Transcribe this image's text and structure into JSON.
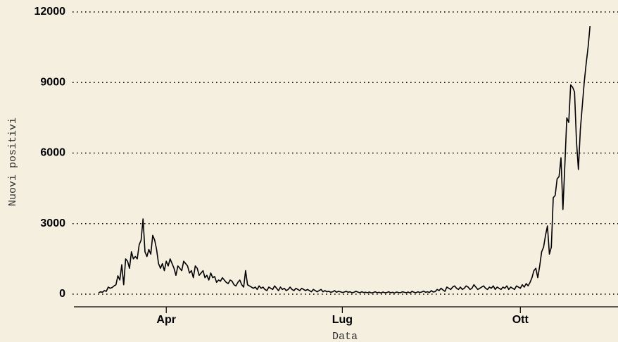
{
  "chart_data": {
    "type": "line",
    "x_label": "Data",
    "y_label": "Nuovi positivi",
    "categories": [
      null,
      null,
      null,
      null,
      null,
      null,
      null,
      null,
      null,
      null,
      null,
      null,
      null,
      null,
      null,
      null,
      null,
      null,
      null,
      null,
      null,
      null,
      null,
      null,
      null,
      null,
      null,
      null,
      null,
      null,
      null,
      null,
      null,
      null,
      null,
      "Apr",
      null,
      null,
      null,
      null,
      null,
      null,
      null,
      null,
      null,
      null,
      null,
      null,
      null,
      null,
      null,
      null,
      null,
      null,
      null,
      null,
      null,
      null,
      null,
      null,
      null,
      null,
      null,
      null,
      null,
      null,
      null,
      null,
      null,
      null,
      null,
      null,
      null,
      null,
      null,
      null,
      null,
      null,
      null,
      null,
      null,
      null,
      null,
      null,
      null,
      null,
      null,
      null,
      null,
      null,
      null,
      null,
      null,
      null,
      null,
      null,
      null,
      null,
      null,
      null,
      null,
      null,
      null,
      null,
      null,
      null,
      null,
      null,
      null,
      null,
      null,
      null,
      null,
      null,
      null,
      null,
      null,
      null,
      null,
      null,
      null,
      null,
      null,
      null,
      null,
      null,
      "Lug",
      null,
      null,
      null,
      null,
      null,
      null,
      null,
      null,
      null,
      null,
      null,
      null,
      null,
      null,
      null,
      null,
      null,
      null,
      null,
      null,
      null,
      null,
      null,
      null,
      null,
      null,
      null,
      null,
      null,
      null,
      null,
      null,
      null,
      null,
      null,
      null,
      null,
      null,
      null,
      null,
      null,
      null,
      null,
      null,
      null,
      null,
      null,
      null,
      null,
      null,
      null,
      null,
      null,
      null,
      null,
      null,
      null,
      null,
      null,
      null,
      null,
      null,
      null,
      null,
      null,
      null,
      null,
      null,
      null,
      null,
      null,
      null,
      null,
      null,
      null,
      null,
      null,
      null,
      null,
      null,
      null,
      null,
      null,
      null,
      null,
      null,
      null,
      null,
      null,
      null,
      null,
      "Ott",
      null,
      null,
      null,
      null,
      null,
      null,
      null,
      null,
      null,
      null,
      null,
      null,
      null,
      null,
      null,
      null,
      null,
      null,
      null,
      null,
      null,
      null,
      null,
      null,
      null,
      null,
      null,
      null,
      null,
      null,
      null,
      null,
      null,
      null,
      null,
      null
    ],
    "series": [
      {
        "name": "Nuovi positivi",
        "color": "#000000",
        "values": [
          50,
          100,
          80,
          150,
          120,
          300,
          250,
          280,
          350,
          400,
          780,
          600,
          1250,
          400,
          1500,
          1400,
          1100,
          1800,
          1500,
          1600,
          1500,
          2100,
          2300,
          3200,
          1800,
          1600,
          1900,
          1700,
          2500,
          2300,
          1900,
          1300,
          1100,
          1300,
          1000,
          1400,
          1200,
          1500,
          1300,
          1100,
          800,
          1200,
          1100,
          1000,
          1400,
          1300,
          1200,
          900,
          1000,
          700,
          1200,
          1100,
          800,
          900,
          1000,
          700,
          800,
          600,
          900,
          700,
          750,
          500,
          600,
          550,
          700,
          600,
          500,
          450,
          600,
          550,
          400,
          350,
          500,
          600,
          400,
          300,
          1000,
          400,
          350,
          300,
          250,
          300,
          200,
          350,
          250,
          300,
          200,
          150,
          300,
          250,
          200,
          350,
          250,
          150,
          300,
          200,
          250,
          150,
          200,
          300,
          200,
          150,
          250,
          200,
          150,
          250,
          200,
          150,
          200,
          150,
          100,
          200,
          150,
          100,
          150,
          200,
          100,
          150,
          100,
          120,
          80,
          100,
          150,
          80,
          120,
          100,
          70,
          90,
          120,
          80,
          100,
          60,
          80,
          120,
          90,
          60,
          100,
          70,
          80,
          60,
          90,
          50,
          70,
          100,
          60,
          80,
          50,
          90,
          60,
          70,
          100,
          60,
          80,
          50,
          90,
          70,
          60,
          100,
          80,
          60,
          90,
          50,
          120,
          80,
          60,
          100,
          70,
          90,
          130,
          80,
          100,
          70,
          150,
          90,
          110,
          200,
          150,
          250,
          180,
          120,
          300,
          250,
          200,
          300,
          350,
          250,
          200,
          300,
          200,
          250,
          350,
          300,
          200,
          250,
          400,
          300,
          200,
          250,
          300,
          350,
          250,
          200,
          300,
          250,
          350,
          200,
          300,
          250,
          200,
          300,
          250,
          350,
          200,
          300,
          250,
          200,
          350,
          300,
          250,
          400,
          300,
          450,
          350,
          500,
          700,
          1000,
          1100,
          700,
          1200,
          1800,
          2000,
          2500,
          2900,
          1700,
          2000,
          4100,
          4200,
          4900,
          5000,
          5800,
          3600,
          5500,
          7500,
          7300,
          8900,
          8800,
          8600,
          6500,
          5300,
          7000,
          8000,
          9000,
          9800,
          10500,
          11400
        ]
      }
    ],
    "ylim": [
      0,
      12000
    ],
    "yticks": [
      0,
      3000,
      6000,
      9000,
      12000
    ],
    "grid": true
  }
}
